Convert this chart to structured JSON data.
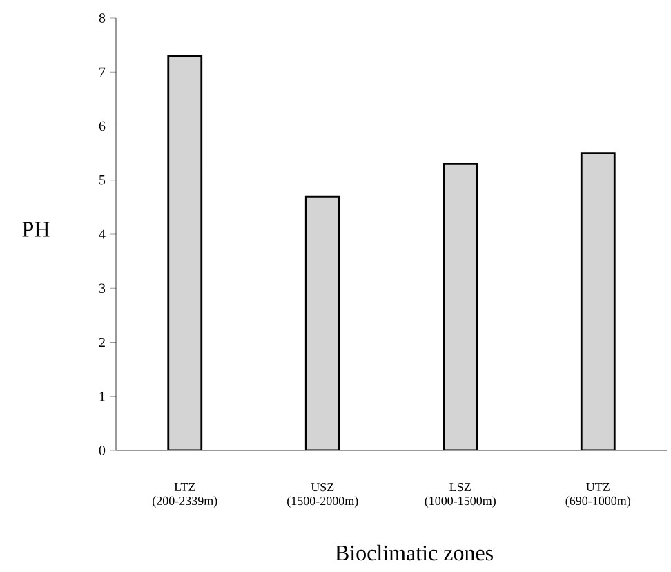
{
  "chart_data": {
    "type": "bar",
    "xlabel": "Bioclimatic zones",
    "ylabel": "PH",
    "categories": [
      "LTZ (200-2339m)",
      "USZ (1500-2000m)",
      "LSZ (1000-1500m)",
      "UTZ (690-1000m)"
    ],
    "values": [
      7.3,
      4.7,
      5.3,
      5.5
    ],
    "color": "#d4d4d4",
    "ylim": [
      0,
      8
    ],
    "yticks": [
      0,
      1,
      2,
      3,
      4,
      5,
      6,
      7,
      8
    ],
    "grid": false
  }
}
